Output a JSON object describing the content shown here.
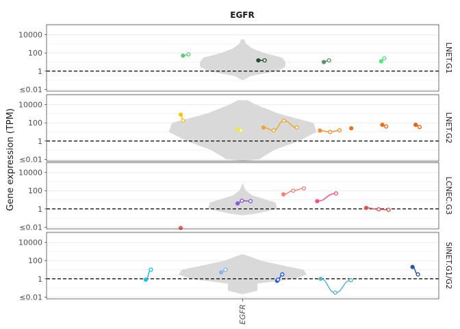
{
  "chart_data": {
    "type": "violin-scatter",
    "title": "EGFR",
    "ylabel": "Gene expression (TPM)",
    "x_category": "EGFR",
    "y_scale": "log10",
    "y_ticks": [
      {
        "value": 0.01,
        "label": "≤0.01"
      },
      {
        "value": 1,
        "label": "1"
      },
      {
        "value": 100,
        "label": "100"
      },
      {
        "value": 10000,
        "label": "10000"
      }
    ],
    "threshold_line": 1,
    "violin_color": "#d9d9d9",
    "panels": [
      {
        "name": "LNET.G1",
        "violin": [
          [
            0.1,
            0
          ],
          [
            0.3,
            0.05
          ],
          [
            1,
            0.21
          ],
          [
            3,
            0.26
          ],
          [
            10,
            0.26
          ],
          [
            30,
            0.24
          ],
          [
            100,
            0.13
          ],
          [
            300,
            0.06
          ],
          [
            1000,
            0.02
          ],
          [
            3000,
            0.01
          ]
        ],
        "samples": [
          {
            "color": "#5ccb7c",
            "points": [
              [
                0.348,
                50
              ],
              [
                0.362,
                70
              ]
            ]
          },
          {
            "color": "#1f4d2e",
            "points": [
              [
                0.54,
                15
              ],
              [
                0.556,
                15
              ]
            ]
          },
          {
            "color": "#5e8f6a",
            "points": [
              [
                0.707,
                10
              ],
              [
                0.72,
                15
              ]
            ]
          },
          {
            "color": "#4de87a",
            "points": [
              [
                0.853,
                12
              ],
              [
                0.861,
                25
              ]
            ]
          }
        ]
      },
      {
        "name": "LNET.G2",
        "violin": [
          [
            0.003,
            0
          ],
          [
            0.01,
            0.1
          ],
          [
            0.1,
            0.19
          ],
          [
            1,
            0.34
          ],
          [
            10,
            0.45
          ],
          [
            100,
            0.43
          ],
          [
            1000,
            0.22
          ],
          [
            10000,
            0.08
          ],
          [
            30000,
            0.03
          ]
        ],
        "samples": [
          {
            "color": "#f5c518",
            "points": [
              [
                0.342,
                800
              ],
              [
                0.348,
                180
              ]
            ]
          },
          {
            "color": "#f2e34d",
            "points": [
              [
                0.486,
                20
              ],
              [
                0.496,
                15
              ]
            ]
          },
          {
            "color": "#f0a42f",
            "points": [
              [
                0.553,
                30
              ],
              [
                0.579,
                15
              ],
              [
                0.605,
                170
              ],
              [
                0.638,
                30
              ]
            ]
          },
          {
            "color": "#fb8c3a",
            "points": [
              [
                0.697,
                14
              ],
              [
                0.723,
                10
              ],
              [
                0.747,
                15
              ]
            ]
          },
          {
            "color": "#e8721f",
            "points": [
              [
                0.777,
                25
              ]
            ]
          },
          {
            "color": "#f56a12",
            "points": [
              [
                0.856,
                60
              ],
              [
                0.866,
                40
              ]
            ]
          },
          {
            "color": "#e86214",
            "points": [
              [
                0.941,
                60
              ],
              [
                0.951,
                35
              ]
            ]
          }
        ]
      },
      {
        "name": "LCNEC.G3",
        "violin": [
          [
            0.2,
            0
          ],
          [
            0.3,
            0.08
          ],
          [
            1,
            0.21
          ],
          [
            5,
            0.2
          ],
          [
            30,
            0.06
          ],
          [
            100,
            0.02
          ],
          [
            300,
            0.008
          ],
          [
            700,
            0
          ]
        ],
        "samples": [
          {
            "color": "#e8606a",
            "points": [
              [
                0.342,
                0.008
              ]
            ]
          },
          {
            "color": "#8e55d6",
            "points": [
              [
                0.487,
                4
              ],
              [
                0.498,
                8
              ],
              [
                0.52,
                7
              ]
            ]
          },
          {
            "color": "#f5837a",
            "points": [
              [
                0.604,
                40
              ],
              [
                0.629,
                100
              ],
              [
                0.656,
                180
              ]
            ]
          },
          {
            "color": "#f5508a",
            "points": [
              [
                0.69,
                7
              ],
              [
                0.738,
                50
              ]
            ]
          },
          {
            "color": "#d95454",
            "points": [
              [
                0.815,
                1.3
              ],
              [
                0.847,
                0.9
              ],
              [
                0.872,
                0.8
              ]
            ]
          }
        ]
      },
      {
        "name": "SINET.G1/G2",
        "violin": [
          [
            0.02,
            0
          ],
          [
            0.05,
            0.09
          ],
          [
            0.3,
            0.09
          ],
          [
            1,
            0.32
          ],
          [
            3,
            0.39
          ],
          [
            10,
            0.37
          ],
          [
            30,
            0.24
          ],
          [
            100,
            0.11
          ],
          [
            300,
            0.04
          ],
          [
            500,
            0
          ]
        ],
        "samples": [
          {
            "color": "#1cc2e8",
            "points": [
              [
                0.253,
                0.8
              ],
              [
                0.266,
                10
              ]
            ]
          },
          {
            "color": "#87b4f5",
            "points": [
              [
                0.445,
                5
              ],
              [
                0.456,
                10
              ]
            ]
          },
          {
            "color": "#1a57e0",
            "points": [
              [
                0.588,
                0.6
              ],
              [
                0.59,
                0.8
              ],
              [
                0.601,
                3
              ]
            ]
          },
          {
            "color": "#5bb5c9",
            "points": [
              [
                0.699,
                1
              ],
              [
                0.736,
                0.03
              ],
              [
                0.776,
                0.7
              ]
            ]
          },
          {
            "color": "#2c5597",
            "points": [
              [
                0.933,
                20
              ],
              [
                0.947,
                3
              ]
            ]
          }
        ]
      }
    ]
  }
}
